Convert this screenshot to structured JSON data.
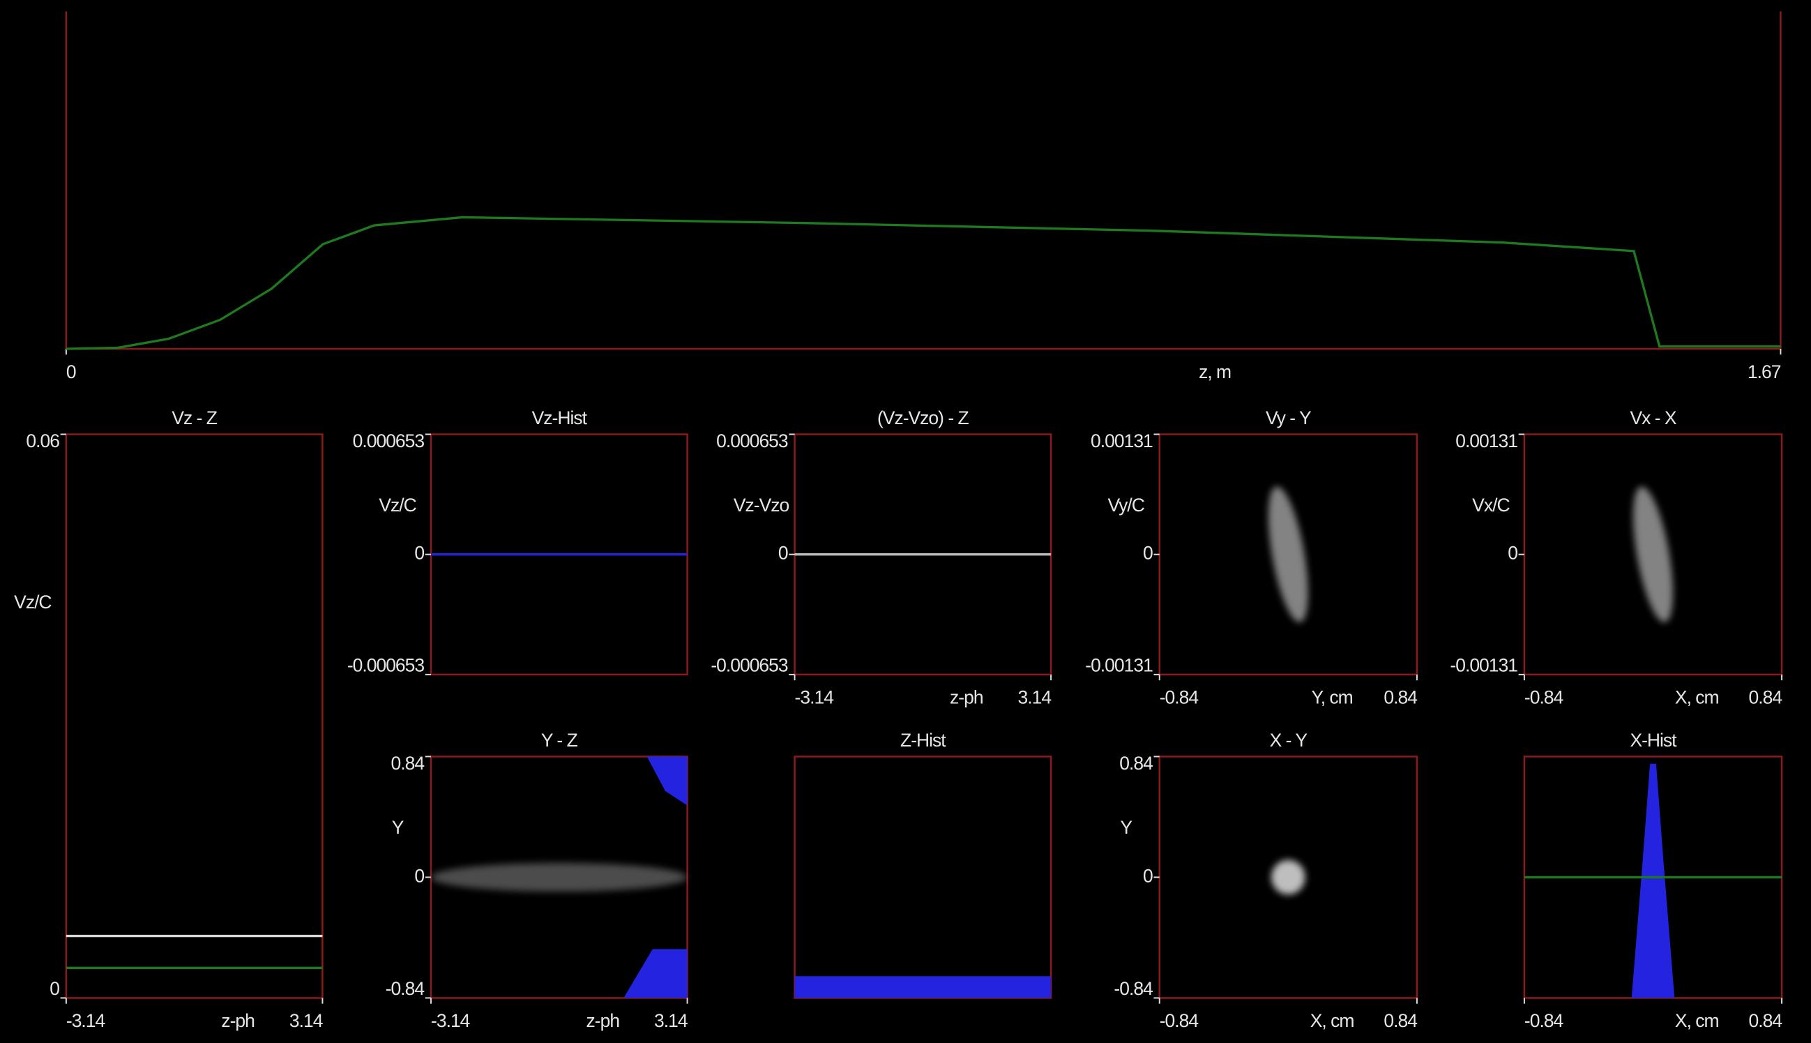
{
  "chart_data": [
    {
      "type": "line",
      "xlabel": "z, m",
      "xlim": [
        0,
        1.67
      ],
      "xticks": [
        0,
        1.67
      ],
      "ylim": [
        0,
        1
      ],
      "x": [
        0,
        0.05,
        0.1,
        0.15,
        0.2,
        0.25,
        0.3,
        0.386,
        0.72,
        1.06,
        1.4,
        1.527,
        1.552,
        1.67
      ],
      "series": [
        {
          "color": "#1f7a1f",
          "values": [
            0,
            0.003,
            0.03,
            0.086,
            0.178,
            0.31,
            0.366,
            0.39,
            0.373,
            0.35,
            0.315,
            0.29,
            0.007,
            0.007
          ]
        }
      ]
    },
    {
      "type": "line",
      "title": "Vz - Z",
      "ylabel": "Vz/C",
      "xlabel": "z-ph",
      "xlim": [
        -3.14,
        3.14
      ],
      "xticks": [
        -3.14,
        3.14
      ],
      "ylim": [
        0,
        0.06
      ],
      "yticks": [
        0,
        0.06
      ],
      "x": [
        -3.14,
        3.14
      ],
      "series": [
        {
          "color": "#d8d8d8",
          "values": [
            0.0066,
            0.0066
          ]
        },
        {
          "color": "#1f7a1f",
          "values": [
            0.0032,
            0.0032
          ]
        }
      ]
    },
    {
      "type": "line",
      "title": "Vz-Hist",
      "ylabel": "Vz/C",
      "ylim": [
        -0.000653,
        0.000653
      ],
      "yticks": [
        -0.000653,
        0,
        0.000653
      ],
      "series": [
        {
          "color": "#2424e0",
          "values": [
            0,
            0
          ]
        }
      ]
    },
    {
      "type": "line",
      "title": "(Vz-Vzo) - Z",
      "ylabel": "Vz-Vzo",
      "xlabel": "z-ph",
      "xlim": [
        -3.14,
        3.14
      ],
      "xticks": [
        -3.14,
        3.14
      ],
      "ylim": [
        -0.000653,
        0.000653
      ],
      "yticks": [
        -0.000653,
        0,
        0.000653
      ],
      "x": [
        -3.14,
        3.14
      ],
      "series": [
        {
          "color": "#bdbdbd",
          "values": [
            0,
            0
          ]
        }
      ]
    },
    {
      "type": "scatter",
      "title": "Vy - Y",
      "ylabel": "Vy/C",
      "xlabel": "Y, cm",
      "xlim": [
        -0.84,
        0.84
      ],
      "xticks": [
        -0.84,
        0.84
      ],
      "ylim": [
        -0.00131,
        0.00131
      ],
      "yticks": [
        -0.00131,
        0,
        0.00131
      ],
      "clouds": [
        {
          "x": 0,
          "y": 0,
          "rx": 0.105,
          "ry": 0.00075,
          "angle": -10,
          "color": "#9a9a9a"
        }
      ]
    },
    {
      "type": "scatter",
      "title": "Vx - X",
      "ylabel": "Vx/C",
      "xlabel": "X, cm",
      "xlim": [
        -0.84,
        0.84
      ],
      "xticks": [
        -0.84,
        0.84
      ],
      "ylim": [
        -0.00131,
        0.00131
      ],
      "yticks": [
        -0.00131,
        0,
        0.00131
      ],
      "clouds": [
        {
          "x": 0,
          "y": 0,
          "rx": 0.105,
          "ry": 0.00075,
          "angle": -10,
          "color": "#9a9a9a"
        }
      ]
    },
    {
      "type": "scatter",
      "title": "Y - Z",
      "ylabel": "Y",
      "xlabel": "z-ph",
      "xlim": [
        -3.14,
        3.14
      ],
      "xticks": [
        -3.14,
        3.14
      ],
      "ylim": [
        -0.84,
        0.84
      ],
      "yticks": [
        -0.84,
        0,
        0.84
      ],
      "clouds": [
        {
          "x": 0,
          "y": 0,
          "rx": 3.14,
          "ry": 0.1,
          "angle": 0,
          "color": "#5a5a5a"
        }
      ],
      "regions": [
        {
          "color": "#2424e0",
          "points": [
            [
              1.58,
              -0.84
            ],
            [
              3.14,
              -0.84
            ],
            [
              3.14,
              -0.5
            ],
            [
              2.29,
              -0.5
            ]
          ]
        },
        {
          "color": "#2424e0",
          "points": [
            [
              2.15,
              0.84
            ],
            [
              3.14,
              0.84
            ],
            [
              3.14,
              0.5
            ],
            [
              2.6,
              0.6
            ]
          ]
        }
      ]
    },
    {
      "type": "bar",
      "title": "Z-Hist",
      "ylim": [
        0,
        1
      ],
      "values": [
        0.09
      ],
      "color": "#2424e0"
    },
    {
      "type": "scatter",
      "title": "X - Y",
      "ylabel": "Y",
      "xlabel": "X, cm",
      "xlim": [
        -0.84,
        0.84
      ],
      "xticks": [
        -0.84,
        0.84
      ],
      "ylim": [
        -0.84,
        0.84
      ],
      "yticks": [
        -0.84,
        0,
        0.84
      ],
      "clouds": [
        {
          "x": 0,
          "y": 0,
          "rx": 0.11,
          "ry": 0.12,
          "angle": 0,
          "color": "#e0e0e0"
        }
      ]
    },
    {
      "type": "area",
      "title": "X-Hist",
      "xlabel": "X, cm",
      "xlim": [
        -0.84,
        0.84
      ],
      "xticks": [
        -0.84,
        0.84
      ],
      "ylim": [
        0,
        1
      ],
      "x": [
        -0.14,
        -0.07,
        -0.02,
        0.02,
        0.07,
        0.14
      ],
      "values": [
        0,
        0.55,
        0.97,
        0.97,
        0.55,
        0
      ],
      "color": "#2424e0",
      "hline": {
        "value": 0.5,
        "color": "#1f7a1f"
      }
    }
  ]
}
